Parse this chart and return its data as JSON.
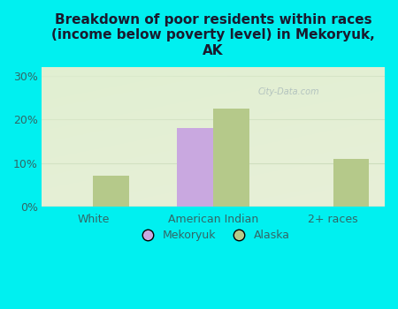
{
  "categories": [
    "White",
    "American Indian",
    "2+ races"
  ],
  "mekoryuk_values": [
    0,
    18,
    0
  ],
  "alaska_values": [
    7,
    22.5,
    11
  ],
  "mekoryuk_color": "#c9a8e0",
  "alaska_color": "#b5c98a",
  "title": "Breakdown of poor residents within races\n(income below poverty level) in Mekoryuk,\nAK",
  "yticks": [
    0,
    10,
    20,
    30
  ],
  "ytick_labels": [
    "0%",
    "10%",
    "20%",
    "30%"
  ],
  "background_color": "#00f0f0",
  "plot_bg_color": "#e8f0d8",
  "bar_width": 0.3,
  "legend_labels": [
    "Mekoryuk",
    "Alaska"
  ],
  "title_fontsize": 11,
  "tick_fontsize": 9,
  "legend_fontsize": 9,
  "title_color": "#1a1a2e",
  "tick_color": "#336666",
  "watermark_text": "City-Data.com",
  "watermark_color": "#aabbbb",
  "grid_color": "#c8d8b8",
  "ylim_max": 32
}
